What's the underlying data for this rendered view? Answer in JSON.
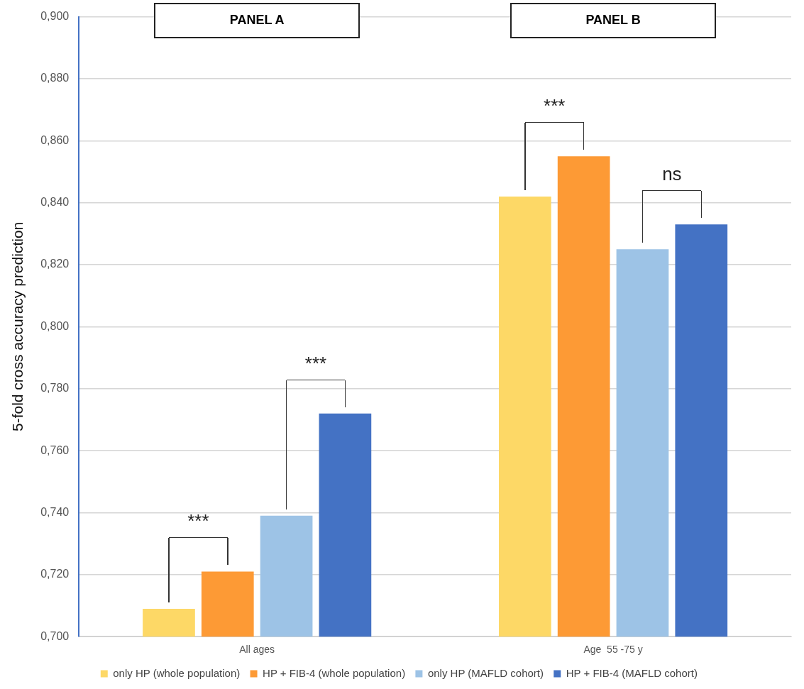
{
  "chart_data": {
    "type": "bar",
    "ylabel": "5-fold cross accuracy prediction",
    "categories": [
      "All ages",
      "Age  55 -75 y"
    ],
    "series": [
      {
        "name": "only HP (whole population)",
        "color": "#fdd866",
        "values": [
          0.709,
          0.842
        ]
      },
      {
        "name": "HP + FIB-4 (whole population)",
        "color": "#fd9a35",
        "values": [
          0.721,
          0.855
        ]
      },
      {
        "name": "only HP (MAFLD cohort)",
        "color": "#9dc3e6",
        "values": [
          0.739,
          0.825
        ]
      },
      {
        "name": "HP + FIB-4 (MAFLD cohort)",
        "color": "#4472c4",
        "values": [
          0.772,
          0.833
        ]
      }
    ],
    "ylim": [
      0.7,
      0.9
    ],
    "yticks": [
      {
        "value": 0.7,
        "label": "0,700"
      },
      {
        "value": 0.72,
        "label": "0,720"
      },
      {
        "value": 0.74,
        "label": "0,740"
      },
      {
        "value": 0.76,
        "label": "0,760"
      },
      {
        "value": 0.78,
        "label": "0,780"
      },
      {
        "value": 0.8,
        "label": "0,800"
      },
      {
        "value": 0.82,
        "label": "0,820"
      },
      {
        "value": 0.84,
        "label": "0,840"
      },
      {
        "value": 0.86,
        "label": "0,860"
      },
      {
        "value": 0.88,
        "label": "0,880"
      },
      {
        "value": 0.9,
        "label": "0,900"
      }
    ],
    "grid": "y",
    "legend": "bottom",
    "annotations": [
      "PANEL A",
      "PANEL B",
      "***",
      "***",
      "***",
      "ns"
    ]
  }
}
